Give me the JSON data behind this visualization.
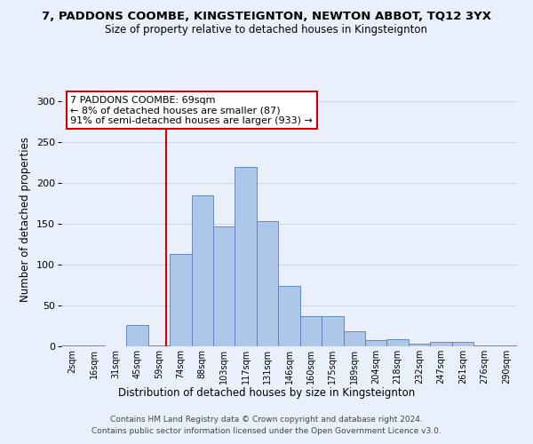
{
  "title": "7, PADDONS COOMBE, KINGSTEIGNTON, NEWTON ABBOT, TQ12 3YX",
  "subtitle": "Size of property relative to detached houses in Kingsteignton",
  "xlabel": "Distribution of detached houses by size in Kingsteignton",
  "ylabel": "Number of detached properties",
  "footer_line1": "Contains HM Land Registry data © Crown copyright and database right 2024.",
  "footer_line2": "Contains public sector information licensed under the Open Government Licence v3.0.",
  "bar_labels": [
    "2sqm",
    "16sqm",
    "31sqm",
    "45sqm",
    "59sqm",
    "74sqm",
    "88sqm",
    "103sqm",
    "117sqm",
    "131sqm",
    "146sqm",
    "160sqm",
    "175sqm",
    "189sqm",
    "204sqm",
    "218sqm",
    "232sqm",
    "247sqm",
    "261sqm",
    "276sqm",
    "290sqm"
  ],
  "bin_edges": [
    0,
    1,
    2,
    3,
    4,
    5,
    6,
    7,
    8,
    9,
    10,
    11,
    12,
    13,
    14,
    15,
    16,
    17,
    18,
    19,
    20
  ],
  "bar_heights": [
    1,
    1,
    0,
    26,
    1,
    113,
    185,
    147,
    220,
    153,
    74,
    37,
    37,
    18,
    8,
    9,
    3,
    5,
    5,
    1,
    1
  ],
  "bar_color": "#aec6e8",
  "bar_edgecolor": "#5080c0",
  "bg_color": "#eaf0fb",
  "grid_color": "#c8d8f0",
  "vline_idx": 4.83,
  "vline_color": "#cc0000",
  "annotation_text": "7 PADDONS COOMBE: 69sqm\n← 8% of detached houses are smaller (87)\n91% of semi-detached houses are larger (933) →",
  "annotation_box_edgecolor": "#cc0000",
  "ylim": [
    0,
    310
  ],
  "yticks": [
    0,
    50,
    100,
    150,
    200,
    250,
    300
  ]
}
